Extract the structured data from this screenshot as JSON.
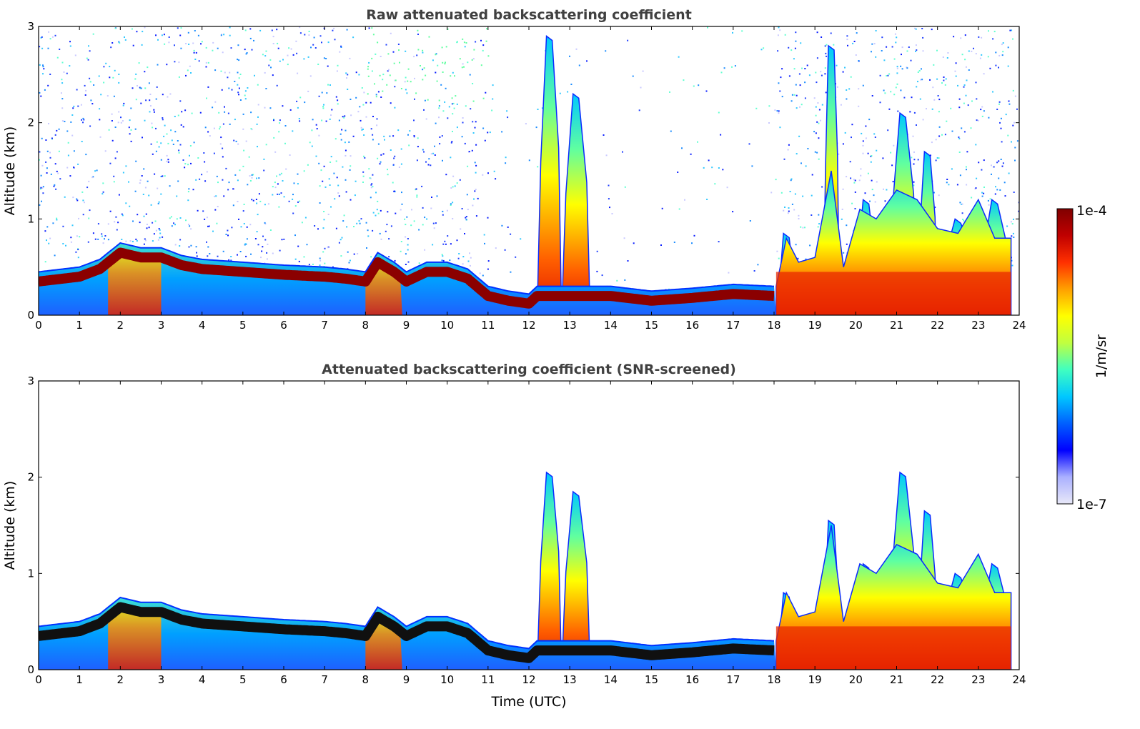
{
  "chart_data": [
    {
      "type": "heatmap",
      "title": "Raw attenuated backscattering coefficient",
      "xlabel": "",
      "ylabel": "Altitude (km)",
      "xlim": [
        0,
        24
      ],
      "ylim": [
        0,
        3
      ],
      "xticks": [
        "0",
        "1",
        "2",
        "3",
        "4",
        "5",
        "6",
        "7",
        "8",
        "9",
        "10",
        "11",
        "12",
        "13",
        "14",
        "15",
        "16",
        "17",
        "18",
        "19",
        "20",
        "21",
        "22",
        "23",
        "24"
      ],
      "yticks": [
        "0",
        "1",
        "2",
        "3"
      ],
      "noise_above_boundary_layer": true,
      "boundary_layer_top_km": [
        [
          0,
          0.45
        ],
        [
          1,
          0.5
        ],
        [
          1.5,
          0.58
        ],
        [
          2,
          0.75
        ],
        [
          2.5,
          0.7
        ],
        [
          3,
          0.7
        ],
        [
          3.5,
          0.62
        ],
        [
          4,
          0.58
        ],
        [
          5,
          0.55
        ],
        [
          6,
          0.52
        ],
        [
          7,
          0.5
        ],
        [
          7.5,
          0.48
        ],
        [
          8,
          0.45
        ],
        [
          8.3,
          0.65
        ],
        [
          8.7,
          0.55
        ],
        [
          9,
          0.45
        ],
        [
          9.5,
          0.55
        ],
        [
          10,
          0.55
        ],
        [
          10.5,
          0.48
        ],
        [
          11,
          0.3
        ],
        [
          11.5,
          0.25
        ],
        [
          12,
          0.22
        ],
        [
          12.2,
          0.3
        ],
        [
          14,
          0.3
        ],
        [
          15,
          0.25
        ],
        [
          16,
          0.28
        ],
        [
          17,
          0.32
        ],
        [
          18,
          0.3
        ]
      ],
      "cloud_columns": [
        {
          "start": 12.2,
          "end": 12.8,
          "top_km": 2.9
        },
        {
          "start": 12.8,
          "end": 13.5,
          "top_km": 2.3
        },
        {
          "start": 18.1,
          "end": 18.5,
          "top_km": 0.85
        },
        {
          "start": 19.2,
          "end": 19.6,
          "top_km": 2.8
        },
        {
          "start": 20.0,
          "end": 20.5,
          "top_km": 1.2
        },
        {
          "start": 20.8,
          "end": 21.5,
          "top_km": 2.1
        },
        {
          "start": 21.5,
          "end": 22.0,
          "top_km": 1.7
        },
        {
          "start": 22.0,
          "end": 23.0,
          "top_km": 1.0
        },
        {
          "start": 23.0,
          "end": 23.8,
          "top_km": 1.2
        }
      ]
    },
    {
      "type": "heatmap",
      "title": "Attenuated backscattering coefficient (SNR-screened)",
      "xlabel": "Time (UTC)",
      "ylabel": "Altitude (km)",
      "xlim": [
        0,
        24
      ],
      "ylim": [
        0,
        3
      ],
      "xticks": [
        "0",
        "1",
        "2",
        "3",
        "4",
        "5",
        "6",
        "7",
        "8",
        "9",
        "10",
        "11",
        "12",
        "13",
        "14",
        "15",
        "16",
        "17",
        "18",
        "19",
        "20",
        "21",
        "22",
        "23",
        "24"
      ],
      "yticks": [
        "0",
        "1",
        "2",
        "3"
      ],
      "noise_above_boundary_layer": false,
      "boundary_layer_top_km": [
        [
          0,
          0.45
        ],
        [
          1,
          0.5
        ],
        [
          1.5,
          0.58
        ],
        [
          2,
          0.75
        ],
        [
          2.5,
          0.7
        ],
        [
          3,
          0.7
        ],
        [
          3.5,
          0.62
        ],
        [
          4,
          0.58
        ],
        [
          5,
          0.55
        ],
        [
          6,
          0.52
        ],
        [
          7,
          0.5
        ],
        [
          7.5,
          0.48
        ],
        [
          8,
          0.45
        ],
        [
          8.3,
          0.65
        ],
        [
          8.7,
          0.55
        ],
        [
          9,
          0.45
        ],
        [
          9.5,
          0.55
        ],
        [
          10,
          0.55
        ],
        [
          10.5,
          0.48
        ],
        [
          11,
          0.3
        ],
        [
          11.5,
          0.25
        ],
        [
          12,
          0.22
        ],
        [
          12.2,
          0.3
        ],
        [
          14,
          0.3
        ],
        [
          15,
          0.25
        ],
        [
          16,
          0.28
        ],
        [
          17,
          0.32
        ],
        [
          18,
          0.3
        ]
      ],
      "cloud_columns": [
        {
          "start": 12.2,
          "end": 12.8,
          "top_km": 2.05
        },
        {
          "start": 12.8,
          "end": 13.5,
          "top_km": 1.85
        },
        {
          "start": 18.1,
          "end": 18.5,
          "top_km": 0.8
        },
        {
          "start": 19.2,
          "end": 19.6,
          "top_km": 1.55
        },
        {
          "start": 20.0,
          "end": 20.5,
          "top_km": 1.1
        },
        {
          "start": 20.8,
          "end": 21.5,
          "top_km": 2.05
        },
        {
          "start": 21.5,
          "end": 22.0,
          "top_km": 1.65
        },
        {
          "start": 22.0,
          "end": 23.0,
          "top_km": 1.0
        },
        {
          "start": 23.0,
          "end": 23.8,
          "top_km": 1.1
        }
      ]
    }
  ],
  "colorbar": {
    "label": "1/m/sr",
    "max_label": "1e-4",
    "min_label": "1e-7",
    "colormap": [
      "#e8e8f8",
      "#aab0ff",
      "#0000ff",
      "#0060ff",
      "#00c8ff",
      "#40ffc0",
      "#c0ff40",
      "#ffff00",
      "#ffa000",
      "#ff3000",
      "#c00000",
      "#800000"
    ]
  },
  "colors": {
    "ground_blue": "#1e78ff",
    "boundary_layer": "#8b0000",
    "screened_boundary_layer": "#101010"
  }
}
